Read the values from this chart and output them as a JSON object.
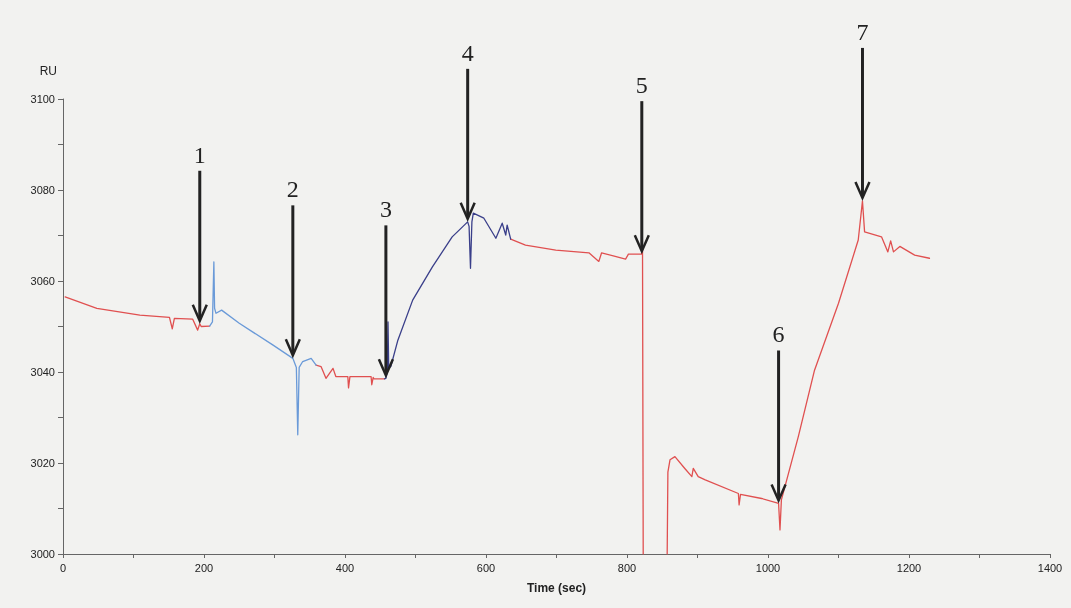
{
  "chart_data": {
    "type": "line",
    "xlabel": "Time (sec)",
    "ylabel": "RU",
    "xlim": [
      0,
      1400
    ],
    "ylim": [
      3000,
      3100
    ],
    "xticks": [
      0,
      {
        "value": 100,
        "label": null
      },
      200,
      {
        "value": 300,
        "label": null
      },
      400,
      {
        "value": 500,
        "label": null
      },
      600,
      {
        "value": 700,
        "label": null
      },
      800,
      {
        "value": 900,
        "label": null
      },
      1000,
      {
        "value": 1100,
        "label": null
      },
      1200,
      {
        "value": 1300,
        "label": null
      },
      1400
    ],
    "yticks": [
      3000,
      {
        "value": 3010,
        "label": null
      },
      3020,
      {
        "value": 3030,
        "label": null
      },
      3040,
      {
        "value": 3050,
        "label": null
      },
      3060,
      {
        "value": 3070,
        "label": null
      },
      3080,
      {
        "value": 3090,
        "label": null
      },
      3100
    ],
    "series": [
      {
        "color": "#e05050",
        "x": [
          3,
          48,
          109,
          151,
          155,
          158,
          184,
          191,
          194,
          196,
          208,
          null,
          359,
          366,
          373,
          383,
          387,
          404,
          405,
          407,
          437,
          438,
          440,
          441,
          456,
          null,
          635,
          656,
          699,
          746,
          760,
          764,
          798,
          802,
          821,
          822,
          823,
          null,
          857,
          858,
          861,
          868,
          882,
          892,
          894,
          901,
          911,
          958,
          959,
          961,
          991,
          1015,
          1017,
          1019,
          1043,
          1066,
          1100,
          1128,
          1134,
          1137,
          1161,
          1170,
          1174,
          1178,
          1187,
          1208,
          1229
        ],
        "values": [
          3056.5,
          3054.0,
          3052.5,
          3052.0,
          3049.5,
          3051.8,
          3051.6,
          3049.2,
          3050.6,
          3050.0,
          3050.1,
          null,
          3041.5,
          3041.2,
          3038.6,
          3040.8,
          3039.0,
          3039.0,
          3036.5,
          3039.0,
          3039.0,
          3037.2,
          3038.8,
          3038.5,
          3038.5,
          null,
          3069.2,
          3067.9,
          3066.8,
          3066.2,
          3064.3,
          3066.2,
          3064.8,
          3065.9,
          3065.9,
          3067.5,
          3000,
          null,
          3000,
          3018,
          3020.7,
          3021.4,
          3018.8,
          3017.0,
          3018.8,
          3017.0,
          3016.3,
          3013.3,
          3010.8,
          3013.1,
          3012.2,
          3011.1,
          3005.3,
          3011.9,
          3025.8,
          3040.4,
          3055.1,
          3069.0,
          3077.6,
          3070.8,
          3069.7,
          3066.4,
          3068.8,
          3066.4,
          3067.6,
          3065.7,
          3065.0
        ]
      },
      {
        "color": "#6a9ad8",
        "x": [
          208,
          212,
          214,
          215,
          217,
          225,
          250,
          298,
          326,
          331,
          333,
          335,
          340,
          352,
          359
        ],
        "values": [
          3050.1,
          3051,
          3064.2,
          3054,
          3052.9,
          3053.6,
          3050.7,
          3045.9,
          3043.0,
          3041,
          3026.2,
          3041,
          3042.3,
          3043.0,
          3041.5
        ]
      },
      {
        "color": "#3a3f8a",
        "x": [
          456,
          458,
          460,
          461,
          462,
          465,
          475,
          496,
          524,
          552,
          574,
          576,
          578,
          580,
          582,
          597,
          614,
          623,
          628,
          630,
          635
        ],
        "values": [
          3038.5,
          3038.6,
          3040,
          3051,
          3040.8,
          3041.2,
          3047.0,
          3055.8,
          3063.1,
          3069.7,
          3073.0,
          3072,
          3062.8,
          3073,
          3074.9,
          3073.8,
          3069.4,
          3072.7,
          3070.1,
          3072.3,
          3069.2
        ]
      }
    ],
    "annotations": [
      {
        "text": "1",
        "x": 194,
        "y": 3050.6
      },
      {
        "text": "2",
        "x": 326,
        "y": 3043.0
      },
      {
        "text": "3",
        "x": 458,
        "y": 3038.6
      },
      {
        "text": "4",
        "x": 574,
        "y": 3073.0
      },
      {
        "text": "5",
        "x": 821,
        "y": 3065.9
      },
      {
        "text": "6",
        "x": 1015,
        "y": 3011.1
      },
      {
        "text": "7",
        "x": 1134,
        "y": 3077.6
      }
    ]
  }
}
